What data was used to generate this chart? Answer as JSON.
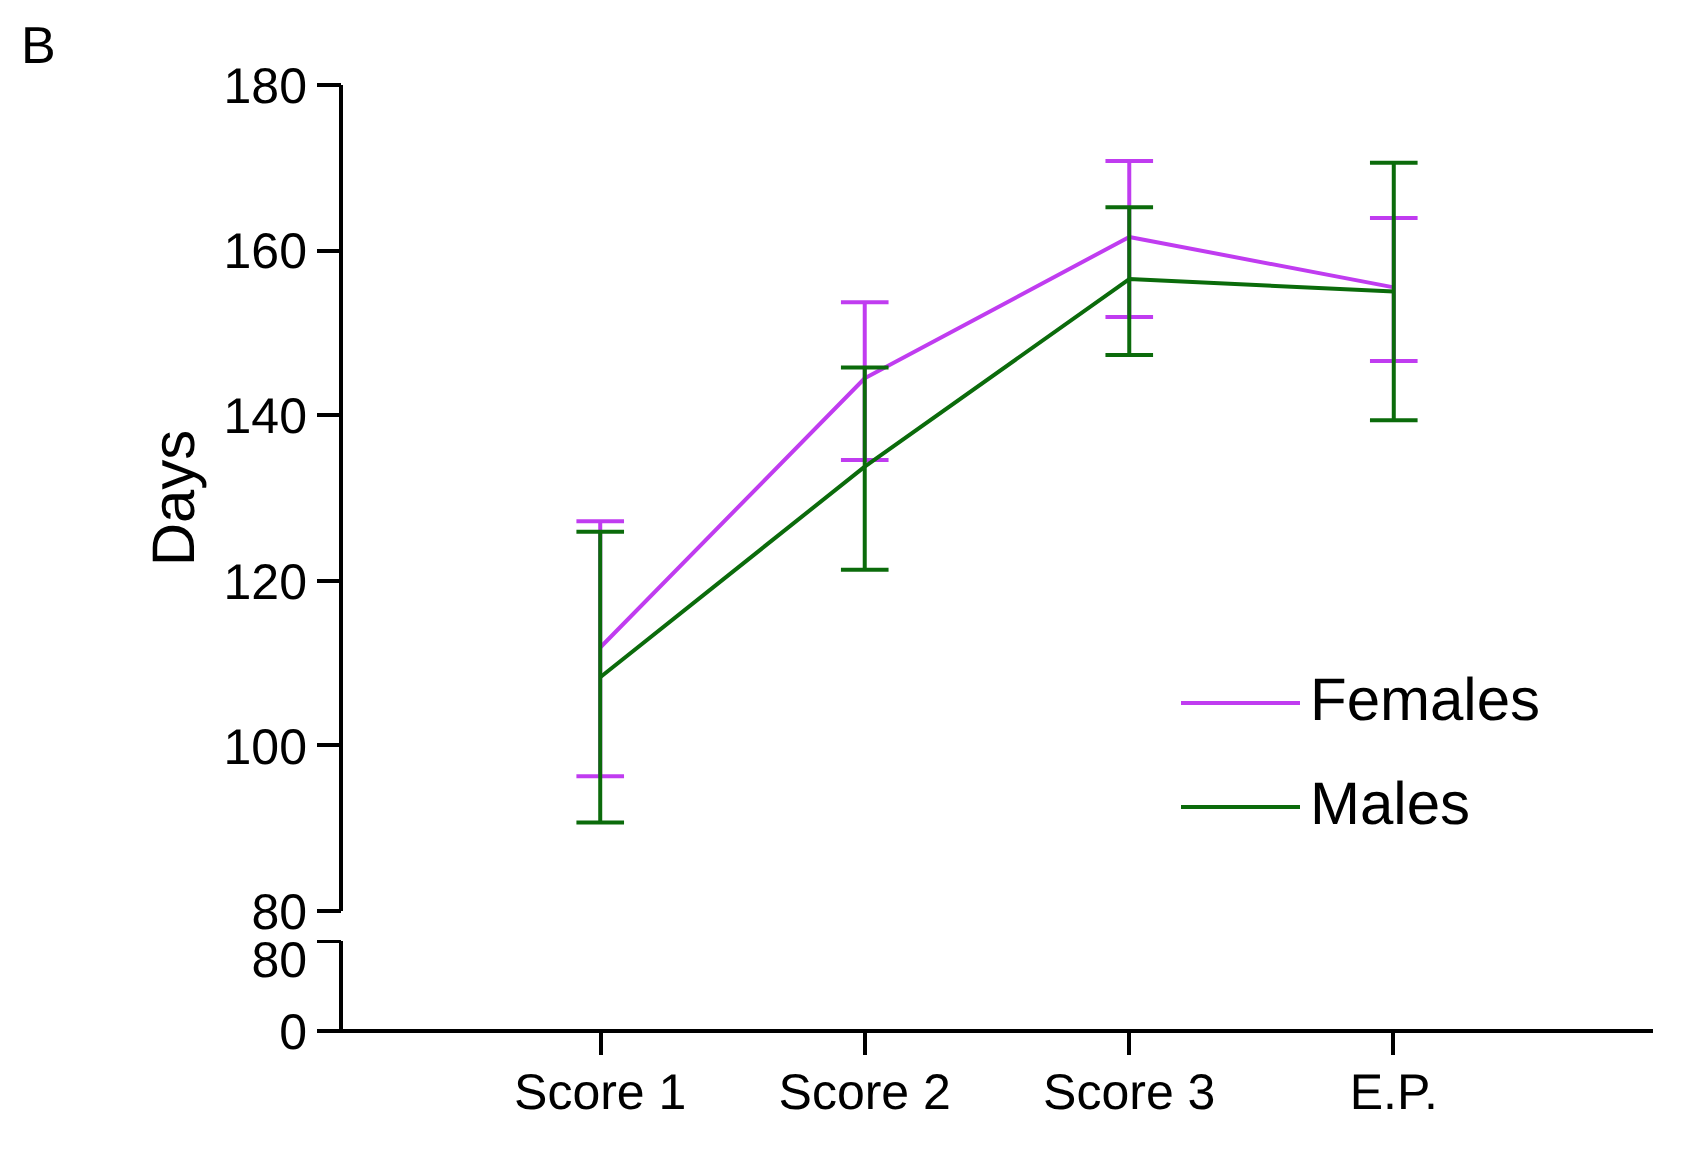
{
  "chart_data": [
    {
      "type": "line",
      "title": "B",
      "ylabel": "Days",
      "categories": [
        null,
        null,
        null,
        null
      ],
      "ylim": [
        80,
        180
      ],
      "yticks": [
        80,
        100,
        120,
        140,
        160,
        180
      ],
      "tick_labels": "y",
      "legend": "right",
      "grid": false,
      "series": [
        {
          "name": "Females",
          "color": "#c03cf0",
          "values": [
            111.9,
            144.5,
            161.6,
            155.5
          ],
          "errors": [
            [
              96.3,
              127.2
            ],
            [
              134.6,
              153.7
            ],
            [
              151.9,
              170.8
            ],
            [
              146.6,
              163.9
            ]
          ]
        },
        {
          "name": "Males",
          "color": "#0b6b0b",
          "values": [
            108.3,
            133.8,
            156.5,
            155.0
          ],
          "errors": [
            [
              90.7,
              125.9
            ],
            [
              121.3,
              145.8
            ],
            [
              147.3,
              165.2
            ],
            [
              139.4,
              170.6
            ]
          ]
        }
      ]
    },
    {
      "type": "line",
      "categories": [
        "Score 1",
        "Score 2",
        "Score 3",
        "E.P."
      ],
      "ylim": [
        0,
        80
      ],
      "yticks": [
        0,
        80
      ],
      "grid": false
    }
  ]
}
